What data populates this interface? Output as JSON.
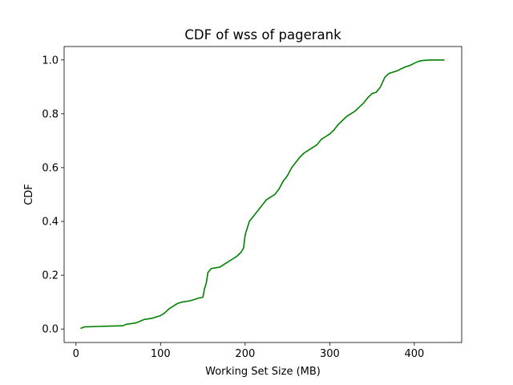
{
  "chart_data": {
    "type": "line",
    "title": "CDF of wss of pagerank",
    "xlabel": "Working Set Size (MB)",
    "ylabel": "CDF",
    "xlim": [
      -14,
      456
    ],
    "ylim": [
      -0.05,
      1.05
    ],
    "xticks": [
      0,
      100,
      200,
      300,
      400
    ],
    "xtick_labels": [
      "0",
      "100",
      "200",
      "300",
      "400"
    ],
    "yticks": [
      0.0,
      0.2,
      0.4,
      0.6,
      0.8,
      1.0
    ],
    "ytick_labels": [
      "0.0",
      "0.2",
      "0.4",
      "0.6",
      "0.8",
      "1.0"
    ],
    "grid": false,
    "legend": "none",
    "series": [
      {
        "color": "#008000",
        "x": [
          6,
          10,
          30,
          55,
          60,
          70,
          75,
          80,
          90,
          95,
          100,
          105,
          110,
          115,
          120,
          125,
          135,
          140,
          145,
          150,
          152,
          154,
          156,
          160,
          170,
          175,
          180,
          185,
          190,
          195,
          198,
          200,
          202,
          205,
          210,
          215,
          220,
          225,
          230,
          235,
          240,
          245,
          250,
          255,
          260,
          265,
          270,
          275,
          280,
          285,
          290,
          295,
          300,
          305,
          310,
          315,
          320,
          325,
          330,
          335,
          340,
          345,
          350,
          355,
          360,
          365,
          370,
          375,
          380,
          385,
          390,
          395,
          400,
          405,
          410,
          415,
          420,
          425,
          435
        ],
        "y": [
          0.003,
          0.008,
          0.01,
          0.012,
          0.018,
          0.022,
          0.028,
          0.035,
          0.04,
          0.045,
          0.05,
          0.06,
          0.075,
          0.085,
          0.095,
          0.1,
          0.105,
          0.11,
          0.115,
          0.118,
          0.15,
          0.17,
          0.21,
          0.225,
          0.23,
          0.24,
          0.25,
          0.26,
          0.27,
          0.285,
          0.3,
          0.35,
          0.37,
          0.4,
          0.42,
          0.44,
          0.46,
          0.48,
          0.49,
          0.5,
          0.52,
          0.55,
          0.57,
          0.6,
          0.62,
          0.64,
          0.655,
          0.665,
          0.675,
          0.685,
          0.705,
          0.715,
          0.725,
          0.74,
          0.76,
          0.775,
          0.79,
          0.8,
          0.81,
          0.825,
          0.84,
          0.86,
          0.875,
          0.88,
          0.9,
          0.935,
          0.95,
          0.955,
          0.96,
          0.968,
          0.975,
          0.98,
          0.988,
          0.995,
          0.998,
          0.999,
          1.0,
          1.0,
          1.0
        ]
      }
    ]
  }
}
